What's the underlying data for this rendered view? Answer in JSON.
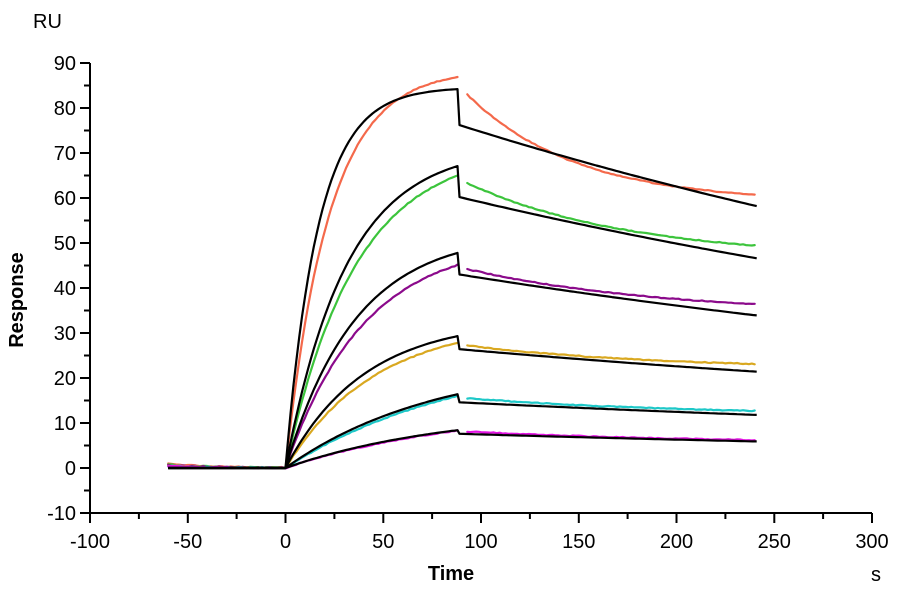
{
  "labels": {
    "y_unit": "RU",
    "y_axis": "Response",
    "x_axis": "Time",
    "x_unit": "s"
  },
  "chart_data": {
    "type": "line",
    "title": "",
    "xlabel": "Time",
    "x_unit": "s",
    "ylabel": "Response",
    "y_unit": "RU",
    "xlim": [
      -100,
      300
    ],
    "ylim": [
      -10,
      90
    ],
    "x_ticks": [
      -100,
      -50,
      0,
      50,
      100,
      150,
      200,
      250,
      300
    ],
    "y_ticks": [
      -10,
      0,
      10,
      20,
      30,
      40,
      50,
      60,
      70,
      80,
      90
    ],
    "x_minor_step": 25,
    "y_minor_step": 5,
    "grid": false,
    "legend": "none",
    "axis_color": "#000000",
    "fit_color": "#000000",
    "timeline": {
      "baseline_start": -60,
      "injection_start": 0,
      "injection_end": 88,
      "dissociation_start": 93,
      "end": 241
    },
    "series": [
      {
        "name": "red",
        "color": "#F4694B",
        "measured": {
          "baseline": 0.9,
          "peak": 86.9,
          "assoc_rate_k": 0.045,
          "diss_start": 83.0,
          "diss_end": 60.7,
          "diss_rate_k": 0.018
        },
        "fit": {
          "peak": 84.2,
          "assoc_rate_k": 0.06,
          "post_injection_drop_to": 76.2,
          "end": 58.2,
          "diss_rate_k": 0.002
        }
      },
      {
        "name": "green",
        "color": "#3CC43C",
        "measured": {
          "baseline": 0.7,
          "peak": 65.0,
          "assoc_rate_k": 0.028,
          "diss_start": 63.3,
          "diss_end": 49.4,
          "diss_rate_k": 0.012
        },
        "fit": {
          "peak": 67.1,
          "assoc_rate_k": 0.032,
          "post_injection_drop_to": 60.2,
          "end": 46.6,
          "diss_rate_k": 0.002
        }
      },
      {
        "name": "purple",
        "color": "#8B0A8B",
        "measured": {
          "baseline": 0.6,
          "peak": 45.1,
          "assoc_rate_k": 0.025,
          "diss_start": 44.2,
          "diss_end": 36.4,
          "diss_rate_k": 0.01
        },
        "fit": {
          "peak": 47.8,
          "assoc_rate_k": 0.028,
          "post_injection_drop_to": 43.0,
          "end": 33.9,
          "diss_rate_k": 0.002
        }
      },
      {
        "name": "yellow",
        "color": "#D9A820",
        "measured": {
          "baseline": 0.5,
          "peak": 27.8,
          "assoc_rate_k": 0.022,
          "diss_start": 27.2,
          "diss_end": 23.1,
          "diss_rate_k": 0.01
        },
        "fit": {
          "peak": 29.3,
          "assoc_rate_k": 0.025,
          "post_injection_drop_to": 26.4,
          "end": 21.4,
          "diss_rate_k": 0.002
        }
      },
      {
        "name": "cyan",
        "color": "#1EC8C8",
        "measured": {
          "baseline": 0.45,
          "peak": 16.0,
          "assoc_rate_k": 0.011,
          "diss_start": 15.5,
          "diss_end": 12.7,
          "diss_rate_k": 0.009
        },
        "fit": {
          "peak": 16.4,
          "assoc_rate_k": 0.013,
          "post_injection_drop_to": 14.6,
          "end": 11.8,
          "diss_rate_k": 0.002
        }
      },
      {
        "name": "magenta",
        "color": "#E214E2",
        "measured": {
          "baseline": 0.4,
          "peak": 8.3,
          "assoc_rate_k": 0.011,
          "diss_start": 8.1,
          "diss_end": 6.2,
          "diss_rate_k": 0.008
        },
        "fit": {
          "peak": 8.4,
          "assoc_rate_k": 0.012,
          "post_injection_drop_to": 7.6,
          "end": 5.9,
          "diss_rate_k": 0.002
        }
      }
    ]
  }
}
